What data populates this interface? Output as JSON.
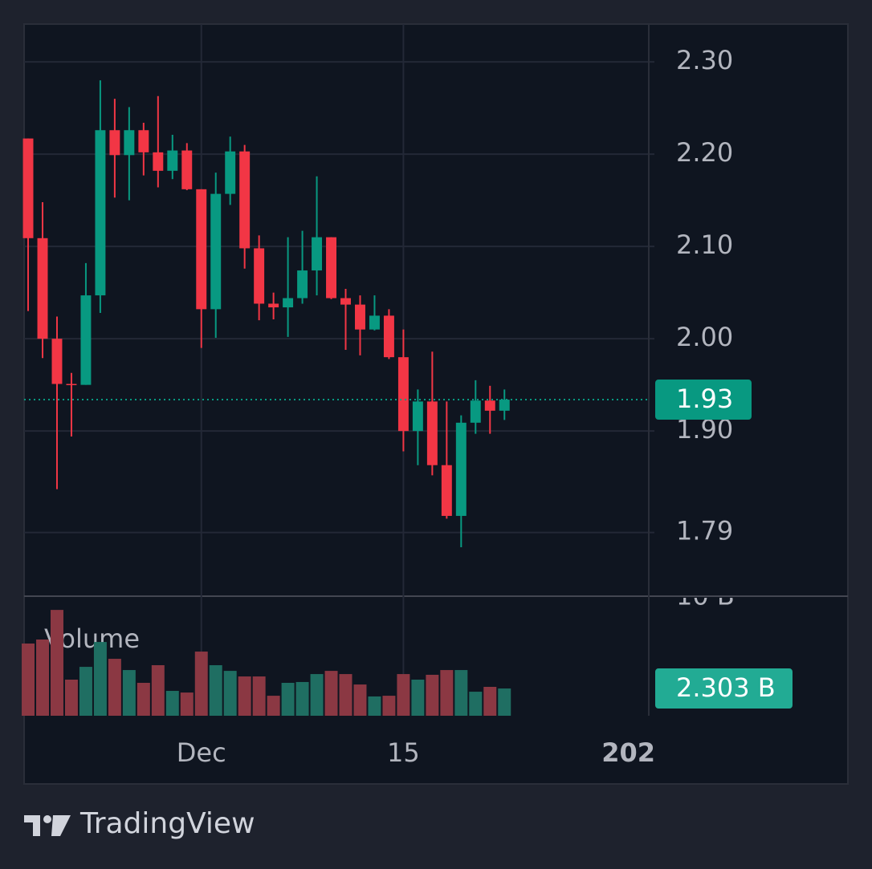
{
  "chart_data": [
    {
      "type": "candlestick",
      "x": [
        0,
        1,
        2,
        3,
        4,
        5,
        6,
        7,
        8,
        9,
        10,
        11,
        12,
        13,
        14,
        15,
        16,
        17,
        18,
        19,
        20,
        21,
        22,
        23,
        24,
        25,
        26,
        27,
        28,
        29,
        30,
        31,
        32,
        33
      ],
      "open": [
        2.217,
        2.109,
        2.0,
        1.951,
        1.95,
        2.047,
        2.226,
        2.199,
        2.226,
        2.202,
        2.182,
        2.204,
        2.162,
        2.032,
        2.157,
        2.203,
        2.098,
        2.038,
        2.034,
        2.044,
        2.074,
        2.11,
        2.044,
        2.037,
        2.01,
        2.025,
        1.98,
        1.9,
        1.932,
        1.863,
        1.808,
        1.909,
        1.933,
        1.922
      ],
      "high": [
        2.217,
        2.148,
        2.024,
        1.963,
        2.082,
        2.28,
        2.26,
        2.251,
        2.234,
        2.263,
        2.221,
        2.212,
        2.162,
        2.18,
        2.219,
        2.21,
        2.112,
        2.05,
        2.11,
        2.117,
        2.176,
        2.11,
        2.054,
        2.047,
        2.047,
        2.032,
        2.01,
        1.945,
        1.986,
        1.932,
        1.917,
        1.955,
        1.949,
        1.945
      ],
      "low": [
        2.03,
        1.979,
        1.837,
        1.894,
        1.95,
        2.028,
        2.153,
        2.15,
        2.177,
        2.164,
        2.173,
        2.161,
        1.99,
        2.001,
        2.145,
        2.076,
        2.02,
        2.021,
        2.002,
        2.038,
        2.047,
        2.043,
        1.988,
        1.982,
        2.009,
        1.978,
        1.878,
        1.863,
        1.852,
        1.805,
        1.774,
        1.897,
        1.897,
        1.912
      ],
      "close": [
        2.109,
        2.0,
        1.951,
        1.95,
        2.047,
        2.226,
        2.199,
        2.226,
        2.202,
        2.182,
        2.204,
        2.162,
        2.032,
        2.157,
        2.203,
        2.098,
        2.038,
        2.034,
        2.044,
        2.074,
        2.11,
        2.044,
        2.037,
        2.01,
        2.025,
        1.98,
        1.9,
        1.932,
        1.863,
        1.808,
        1.909,
        1.933,
        1.922,
        1.934
      ],
      "value_labels": [
        null,
        null,
        null,
        null,
        null,
        null,
        null,
        null,
        null,
        null,
        null,
        null,
        null,
        null,
        null,
        null,
        null,
        null,
        null,
        null,
        null,
        null,
        null,
        null,
        null,
        null,
        null,
        null,
        null,
        null,
        null,
        null,
        null,
        "1.93"
      ],
      "up_color": "#089981",
      "down_color": "#f23645",
      "xlim": [
        -0.28,
        43
      ],
      "xticks": [
        {
          "value": 12,
          "label": "Dec"
        },
        {
          "value": 26,
          "label": "15"
        },
        {
          "value": 43,
          "label": "202"
        }
      ],
      "ylim": [
        1.721,
        2.341
      ],
      "yticks": [
        {
          "value": 2.3,
          "label": "2.30"
        },
        {
          "value": 2.2,
          "label": "2.20"
        },
        {
          "value": 2.1,
          "label": "2.10"
        },
        {
          "value": 2.0,
          "label": "2.00"
        },
        {
          "value": 1.9,
          "label": "1.90"
        },
        1.79
      ],
      "grid": true
    },
    {
      "type": "bar",
      "x": [
        0,
        1,
        2,
        3,
        4,
        5,
        6,
        7,
        8,
        9,
        10,
        11,
        12,
        13,
        14,
        15,
        16,
        17,
        18,
        19,
        20,
        21,
        22,
        23,
        24,
        25,
        26,
        27,
        28,
        29,
        30,
        31,
        32,
        33
      ],
      "series": [
        {
          "name": "Volume",
          "values": [
            6.1,
            6.44,
            8.94,
            3.05,
            4.13,
            6.23,
            4.81,
            3.86,
            2.78,
            4.27,
            2.1,
            1.96,
            5.42,
            4.27,
            3.79,
            3.32,
            3.32,
            1.69,
            2.78,
            2.85,
            3.52,
            3.79,
            3.52,
            2.64,
            1.63,
            1.69,
            3.52,
            3.05,
            3.46,
            3.86,
            3.86,
            2.03,
            2.44,
            2.303
          ],
          "value_labels": [
            null,
            null,
            null,
            null,
            null,
            null,
            null,
            null,
            null,
            null,
            null,
            null,
            null,
            null,
            null,
            null,
            null,
            null,
            null,
            null,
            null,
            null,
            null,
            null,
            null,
            null,
            null,
            null,
            null,
            null,
            null,
            null,
            null,
            "2.303 B"
          ]
        }
      ],
      "up_color": "#1f6e62",
      "down_color": "#8b3843",
      "label_color": "#22ab94",
      "xlim": [
        -0.28,
        43
      ],
      "ylim": [
        0,
        10.1
      ],
      "yticks": [
        {
          "value": 10,
          "label": "10 B"
        }
      ]
    }
  ],
  "attribution": "TradingView"
}
